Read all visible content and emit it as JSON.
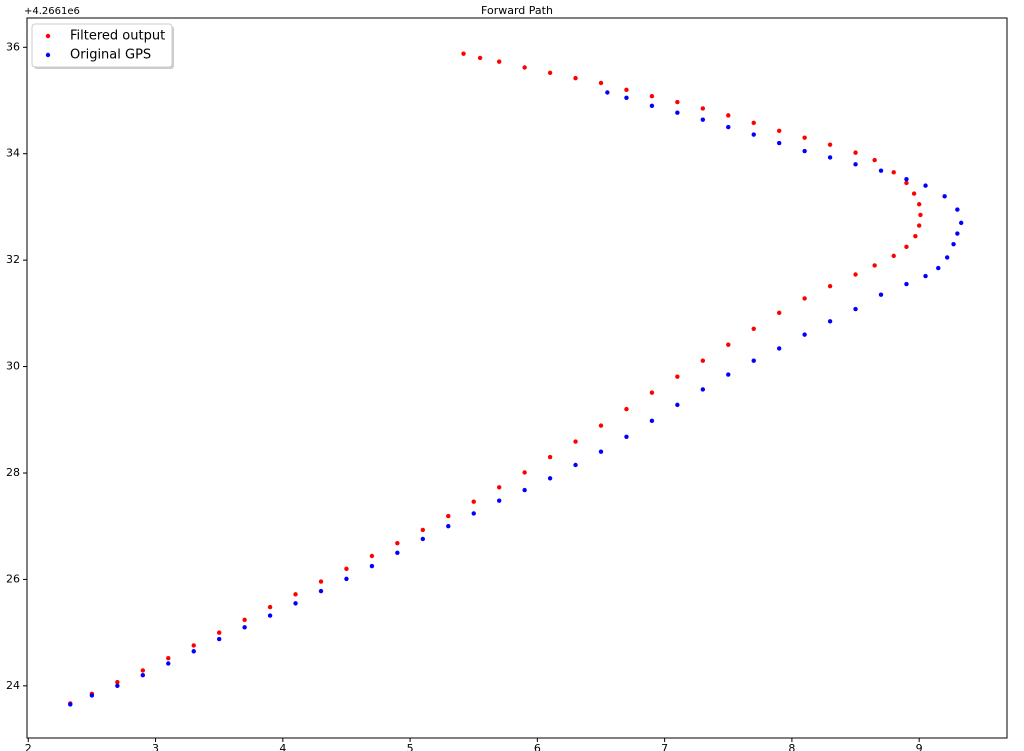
{
  "chart_data": {
    "type": "scatter",
    "title": "Forward Path",
    "y_offset_label": "+4.2661e6",
    "xlim": [
      1.99,
      9.69
    ],
    "xticks": [
      2,
      3,
      4,
      5,
      6,
      7,
      8,
      9
    ],
    "ylim": [
      23.02,
      36.55
    ],
    "yticks": [
      24,
      26,
      28,
      30,
      32,
      34,
      36
    ],
    "legend": "upper left",
    "series": [
      {
        "name": "Filtered output",
        "color": "#ff0000",
        "x": [
          2.33,
          2.5,
          2.7,
          2.9,
          3.1,
          3.3,
          3.5,
          3.7,
          3.9,
          4.1,
          4.3,
          4.5,
          4.7,
          4.9,
          5.1,
          5.3,
          5.5,
          5.7,
          5.9,
          6.1,
          6.3,
          6.5,
          6.7,
          6.9,
          7.1,
          7.3,
          7.5,
          7.7,
          7.9,
          8.1,
          8.3,
          8.5,
          8.65,
          8.8,
          8.9,
          8.97,
          9.0,
          9.01,
          9.0,
          8.96,
          8.9,
          8.8,
          8.65,
          8.5,
          8.3,
          8.1,
          7.9,
          7.7,
          7.5,
          7.3,
          7.1,
          6.9,
          6.7,
          6.5,
          6.3,
          6.1,
          5.9,
          5.7,
          5.55,
          5.42
        ],
        "values": [
          23.67,
          23.85,
          24.07,
          24.29,
          24.52,
          24.76,
          25.0,
          25.24,
          25.48,
          25.72,
          25.96,
          26.2,
          26.44,
          26.68,
          26.93,
          27.19,
          27.46,
          27.73,
          28.01,
          28.3,
          28.59,
          28.89,
          29.2,
          29.51,
          29.81,
          30.11,
          30.41,
          30.71,
          31.01,
          31.28,
          31.51,
          31.73,
          31.9,
          32.08,
          32.25,
          32.45,
          32.65,
          32.85,
          33.05,
          33.25,
          33.45,
          33.65,
          33.88,
          34.02,
          34.17,
          34.3,
          34.43,
          34.58,
          34.72,
          34.85,
          34.97,
          35.08,
          35.2,
          35.33,
          35.42,
          35.52,
          35.62,
          35.73,
          35.8,
          35.88
        ]
      },
      {
        "name": "Original GPS",
        "color": "#0000ff",
        "x": [
          2.33,
          2.5,
          2.7,
          2.9,
          3.1,
          3.3,
          3.5,
          3.7,
          3.9,
          4.1,
          4.3,
          4.5,
          4.7,
          4.9,
          5.1,
          5.3,
          5.5,
          5.7,
          5.9,
          6.1,
          6.3,
          6.5,
          6.7,
          6.9,
          7.1,
          7.3,
          7.5,
          7.7,
          7.9,
          8.1,
          8.3,
          8.5,
          8.7,
          8.9,
          9.05,
          9.15,
          9.22,
          9.27,
          9.3,
          9.33,
          9.3,
          9.2,
          9.05,
          8.9,
          8.7,
          8.5,
          8.3,
          8.1,
          7.9,
          7.7,
          7.5,
          7.3,
          7.1,
          6.9,
          6.7,
          6.55
        ],
        "values": [
          23.65,
          23.82,
          24.0,
          24.2,
          24.42,
          24.65,
          24.88,
          25.1,
          25.32,
          25.55,
          25.78,
          26.01,
          26.25,
          26.5,
          26.76,
          27.0,
          27.24,
          27.48,
          27.68,
          27.9,
          28.15,
          28.4,
          28.68,
          28.98,
          29.28,
          29.57,
          29.85,
          30.11,
          30.34,
          30.6,
          30.85,
          31.08,
          31.35,
          31.55,
          31.7,
          31.85,
          32.05,
          32.3,
          32.5,
          32.7,
          32.95,
          33.2,
          33.4,
          33.52,
          33.68,
          33.8,
          33.93,
          34.05,
          34.2,
          34.36,
          34.5,
          34.64,
          34.77,
          34.9,
          35.05,
          35.15
        ]
      }
    ]
  }
}
